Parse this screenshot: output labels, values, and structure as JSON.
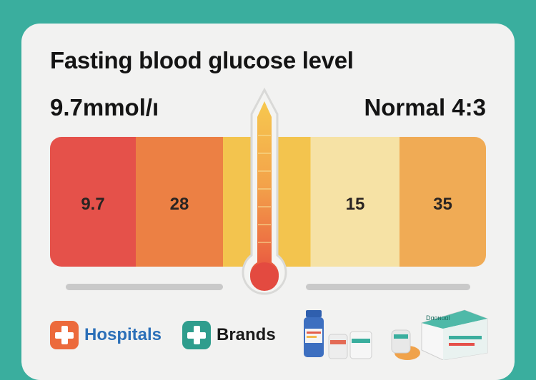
{
  "header": {
    "title": "Fasting blood glucose level",
    "reading": "9.7mmol/ı",
    "normal": "Normal 4:3"
  },
  "scale": {
    "segments": [
      {
        "label": "9.7",
        "color": "#e5514a"
      },
      {
        "label": "28",
        "color": "#ec8044"
      },
      {
        "label": "",
        "color": "#f3c44e"
      },
      {
        "label": "",
        "color": "#f6d476"
      },
      {
        "label": "15",
        "color": "#f6e2a5"
      },
      {
        "label": "35",
        "color": "#f0ab55"
      }
    ]
  },
  "footer": {
    "hospitals_label": "Hospitals",
    "brands_label": "Brands",
    "box_label": "Dɑɑɴɑɑl"
  },
  "colors": {
    "background": "#3aae9e",
    "card": "#f2f2f1",
    "hospitals_accent": "#ec6a3c",
    "hospitals_text": "#2b6fb8",
    "brands_accent": "#2f9d8d"
  },
  "icons": [
    "thermometer-icon",
    "hospital-cross-icon",
    "brand-cross-icon",
    "medicine-bottle-icon",
    "medicine-box-icon"
  ]
}
